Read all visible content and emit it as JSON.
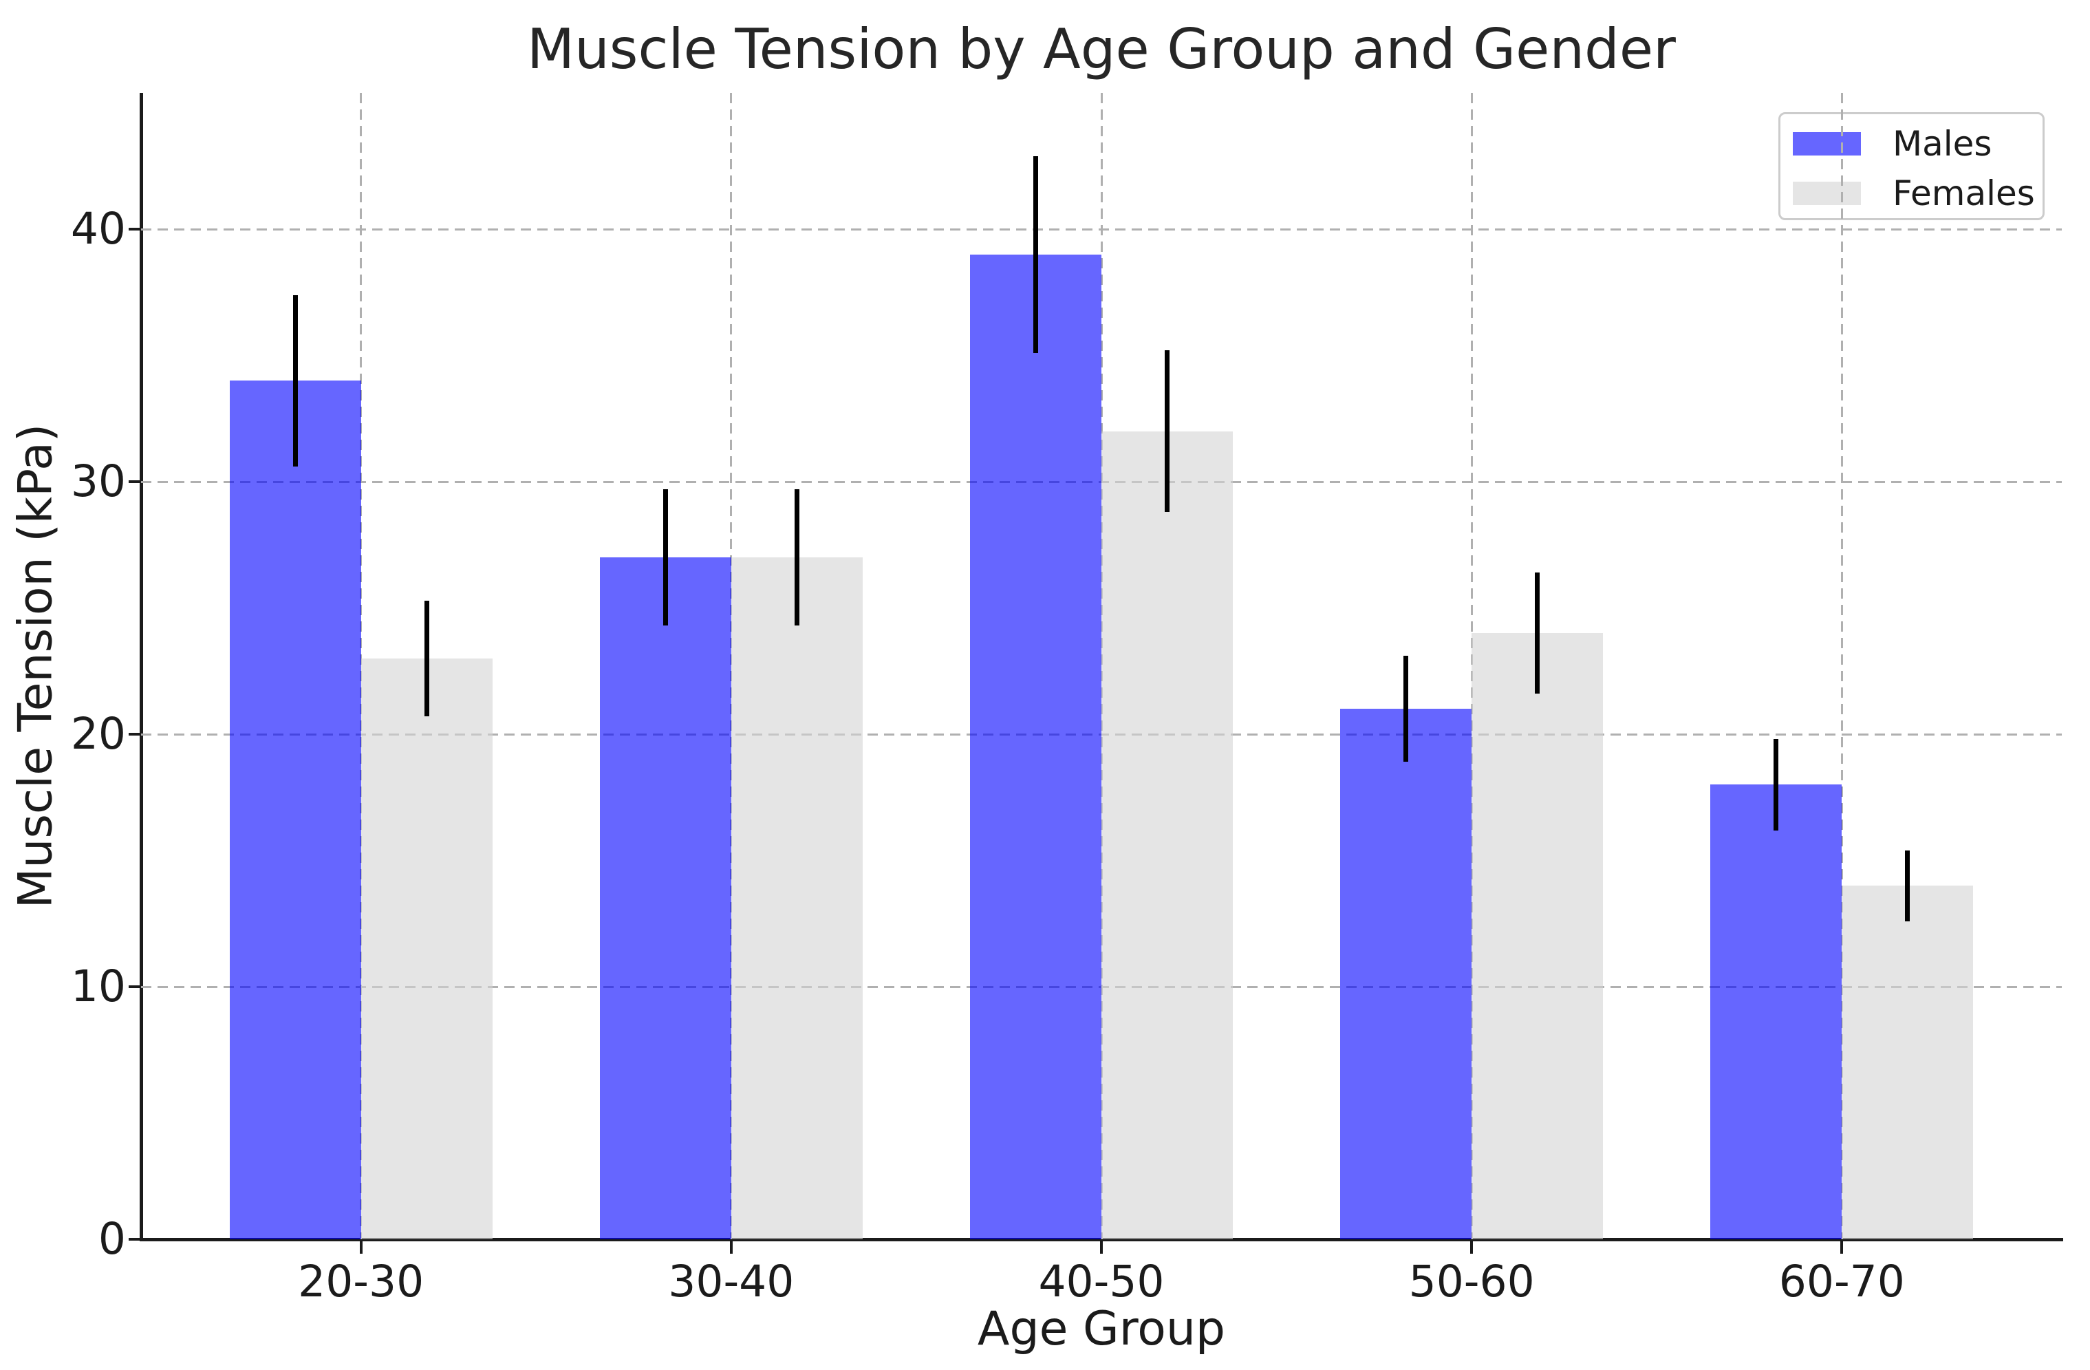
{
  "chart_data": {
    "type": "bar",
    "title": "Muscle Tension by Age Group and Gender",
    "xlabel": "Age Group",
    "ylabel": "Muscle Tension (kPa)",
    "categories": [
      "20-30",
      "30-40",
      "40-50",
      "50-60",
      "60-70"
    ],
    "series": [
      {
        "name": "Males",
        "values": [
          34,
          27,
          39,
          21,
          18
        ],
        "errors": [
          3.4,
          2.7,
          3.9,
          2.1,
          1.8
        ],
        "fill_rgba": "rgba(0,0,255,0.6)",
        "legend_color": "#6666FF"
      },
      {
        "name": "Females",
        "values": [
          23,
          27,
          32,
          24,
          14
        ],
        "errors": [
          2.3,
          2.7,
          3.2,
          2.4,
          1.4
        ],
        "fill_rgba": "rgba(211,211,211,0.6)",
        "legend_color": "#E5E5E5"
      }
    ],
    "yticks": [
      0,
      10,
      20,
      30,
      40
    ],
    "ylim": [
      0,
      45.4
    ],
    "grid": {
      "style": "dashed",
      "color": "#b0b0b0",
      "x": true,
      "y": true
    },
    "legend_position": "upper right",
    "error_bar_color": "#000000",
    "bar_width_fraction": 0.0684
  }
}
